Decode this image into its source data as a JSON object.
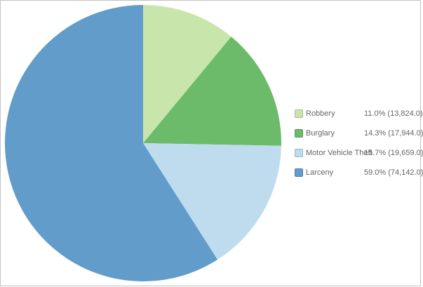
{
  "frame": {
    "background": "#ffffff",
    "border_color": "#c2c2c2",
    "text_color": "#666666"
  },
  "chart_data": {
    "type": "pie",
    "categories": [
      "Robbery",
      "Burglary",
      "Motor Vehicle Theft",
      "Larceny"
    ],
    "values": [
      13824.0,
      17944.0,
      19659.0,
      74142.0
    ],
    "percents": [
      11.0,
      14.3,
      15.7,
      59.0
    ],
    "colors": [
      "#c8e6ac",
      "#6bbb6b",
      "#bedcee",
      "#619cca"
    ],
    "start_angle": "top",
    "direction": "clockwise",
    "legend_position": "right",
    "legend": [
      {
        "label": "Robbery",
        "value_text": "11.0% (13,824.0)"
      },
      {
        "label": "Burglary",
        "value_text": "14.3% (17,944.0)"
      },
      {
        "label": "Motor Vehicle Theft",
        "value_text": "15.7% (19,659.0)"
      },
      {
        "label": "Larceny",
        "value_text": "59.0% (74,142.0)"
      }
    ]
  }
}
